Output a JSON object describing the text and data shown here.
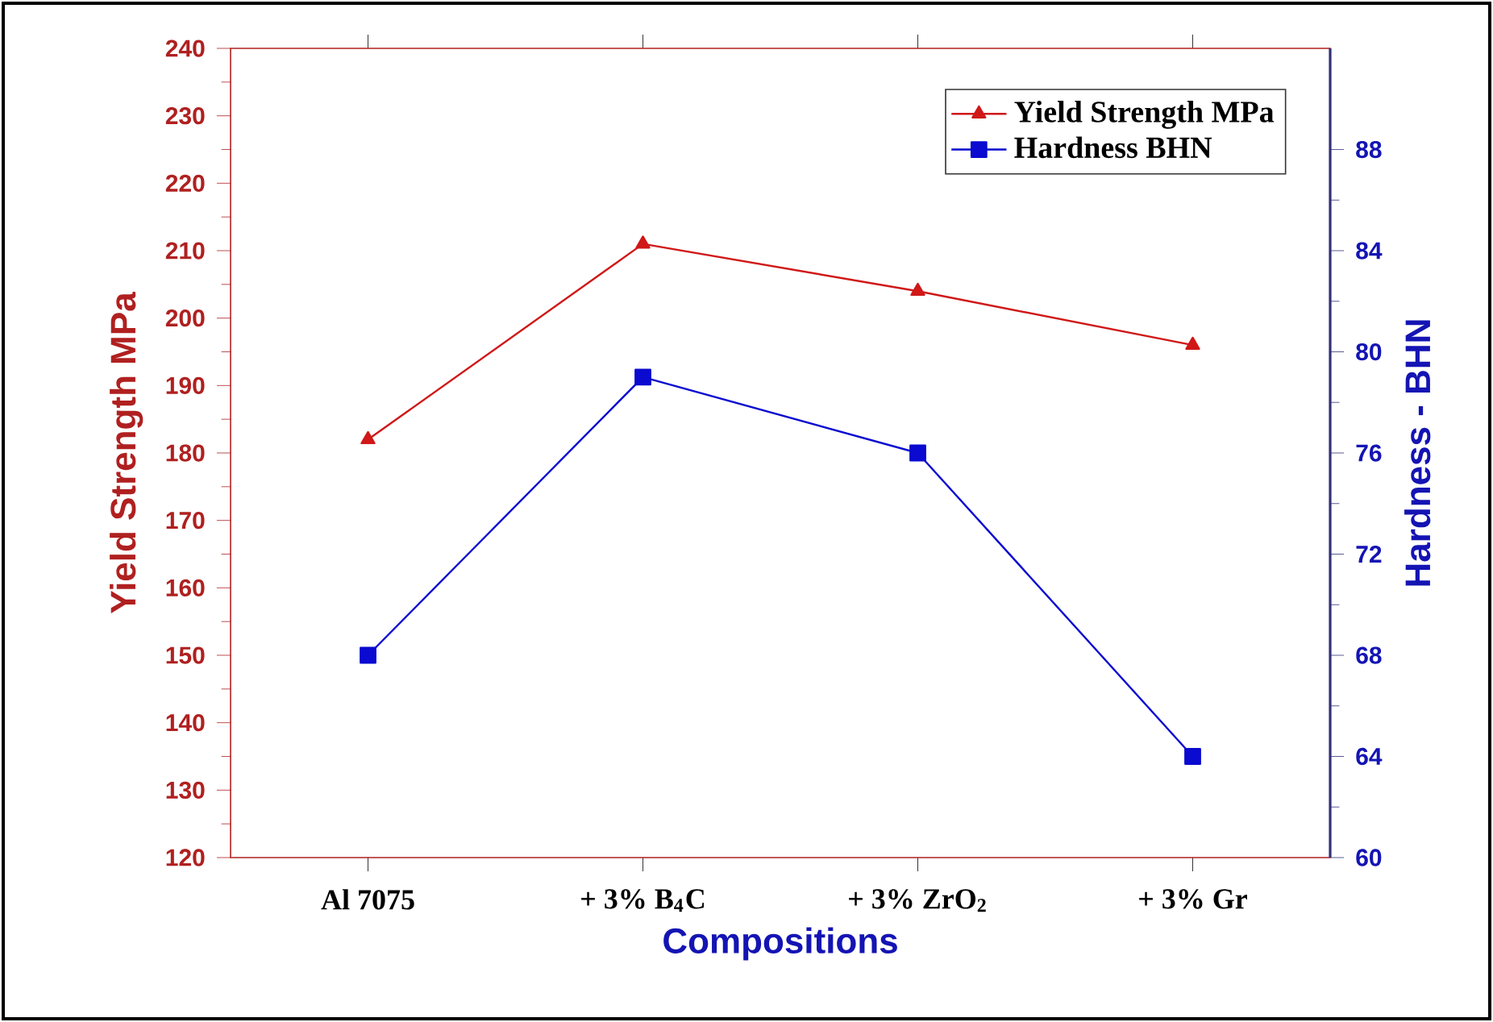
{
  "chart_data": {
    "type": "line",
    "xlabel": "Compositions",
    "ylabel": "Yield Strength MPa",
    "y2label": "Hardness - BHN",
    "categories": [
      "Al 7075",
      "+ 3% B$_{4}$C",
      "+ 3% ZrO$_{2}$",
      "+ 3% Gr"
    ],
    "series": [
      {
        "name": "Yield Strength MPa",
        "color": "#d01818",
        "marker": "triangle",
        "values": [
          182,
          211,
          204,
          196
        ]
      },
      {
        "name": "Hardness BHN",
        "color": "#0a0ad0",
        "marker": "square",
        "axis": "y2",
        "values": [
          68,
          79,
          76,
          64
        ]
      }
    ],
    "ylim": [
      120,
      240
    ],
    "yticks": [
      120,
      130,
      140,
      150,
      160,
      170,
      180,
      190,
      200,
      210,
      220,
      230,
      240
    ],
    "y2lim": [
      60,
      92
    ],
    "y2ticks": [
      60,
      64,
      68,
      72,
      76,
      80,
      84,
      88
    ],
    "legend": "top right",
    "line_style": "solid"
  }
}
